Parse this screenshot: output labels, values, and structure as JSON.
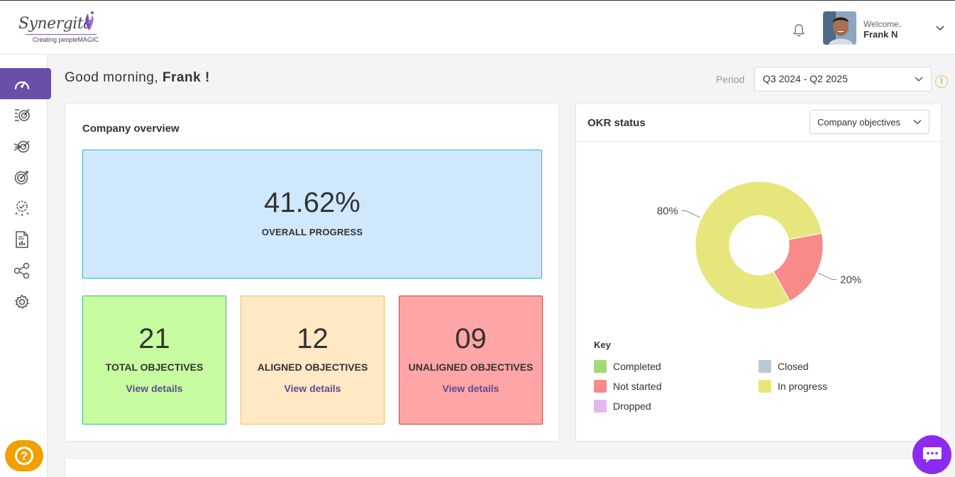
{
  "brand": {
    "name": "Synergita",
    "tagline": "Creating peopleMAGIC"
  },
  "header": {
    "welcome": "Welcome,",
    "user_name": "Frank N",
    "icons": [
      "bell-icon",
      "chevron-down-icon"
    ]
  },
  "sidebar": {
    "items": [
      {
        "name": "dashboard",
        "icon": "speedometer-icon",
        "active": true
      },
      {
        "name": "objectives",
        "icon": "target-checklist-icon"
      },
      {
        "name": "alignment",
        "icon": "target-arrows-icon"
      },
      {
        "name": "goals",
        "icon": "target-icon"
      },
      {
        "name": "reviews",
        "icon": "badge-stars-icon"
      },
      {
        "name": "reports",
        "icon": "report-document-icon"
      },
      {
        "name": "connections",
        "icon": "share-nodes-icon"
      },
      {
        "name": "settings",
        "icon": "gear-icon"
      }
    ]
  },
  "greeting": {
    "prefix": "Good morning,",
    "name": "Frank !"
  },
  "period": {
    "label": "Period",
    "value": "Q3 2024 - Q2 2025"
  },
  "overview": {
    "title": "Company overview",
    "progress_value": "41.62%",
    "progress_label": "OVERALL PROGRESS",
    "stats": [
      {
        "value": "21",
        "label": "TOTAL OBJECTIVES",
        "link": "View details"
      },
      {
        "value": "12",
        "label": "ALIGNED OBJECTIVES",
        "link": "View details"
      },
      {
        "value": "09",
        "label": "UNALIGNED OBJECTIVES",
        "link": "View details"
      }
    ]
  },
  "okr": {
    "title": "OKR status",
    "filter": "Company objectives",
    "key_title": "Key",
    "legend": [
      {
        "label": "Completed",
        "color": "#a3d977"
      },
      {
        "label": "Closed",
        "color": "#b8c8d8"
      },
      {
        "label": "Not started",
        "color": "#f88a8a"
      },
      {
        "label": "In progress",
        "color": "#e6e67d"
      },
      {
        "label": "Dropped",
        "color": "#e3b8ee"
      }
    ]
  },
  "chart_data": {
    "type": "pie",
    "donut": true,
    "slices": [
      {
        "label": "In progress",
        "value": 80,
        "display": "80%",
        "color": "#e6e67d"
      },
      {
        "label": "Not started",
        "value": 20,
        "display": "20%",
        "color": "#f88a8a"
      }
    ]
  }
}
